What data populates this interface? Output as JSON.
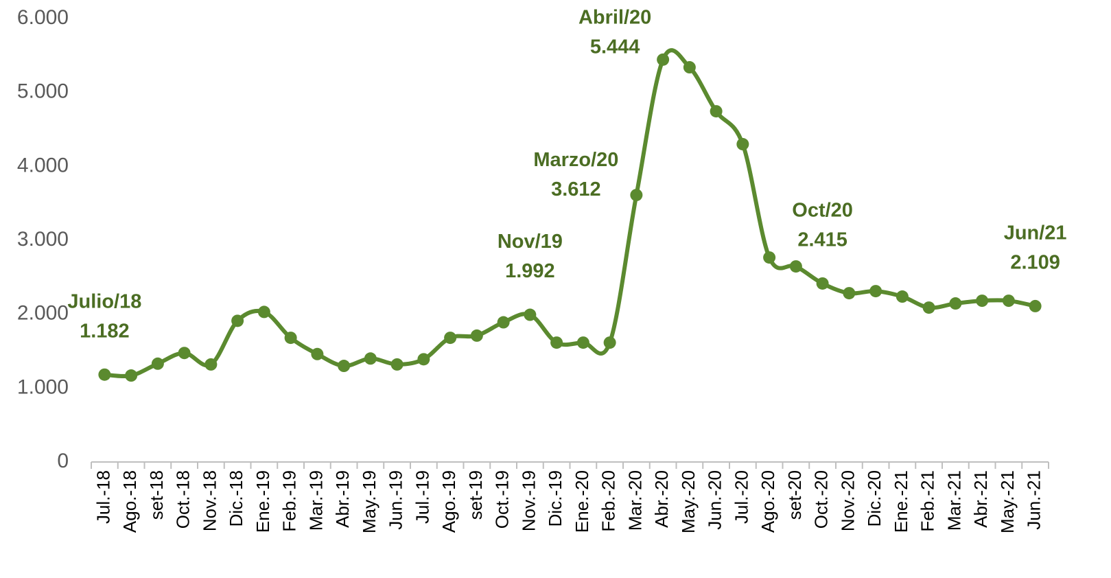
{
  "chart_data": {
    "type": "line",
    "categories": [
      "Jul.-18",
      "Ago.-18",
      "set-18",
      "Oct.-18",
      "Nov.-18",
      "Dic.-18",
      "Ene.-19",
      "Feb.-19",
      "Mar.-19",
      "Abr.-19",
      "May.-19",
      "Jun.-19",
      "Jul.-19",
      "Ago.-19",
      "set-19",
      "Oct.-19",
      "Nov.-19",
      "Dic.-19",
      "Ene.-20",
      "Feb.-20",
      "Mar.-20",
      "Abr.-20",
      "May.-20",
      "Jun.-20",
      "Jul.-20",
      "Ago.-20",
      "set-20",
      "Oct.-20",
      "Nov.-20",
      "Dic.-20",
      "Ene.-21",
      "Feb.-21",
      "Mar.-21",
      "Abr.-21",
      "May.-21",
      "Jun.-21"
    ],
    "values": [
      1182,
      1170,
      1330,
      1475,
      1320,
      1910,
      2030,
      1680,
      1460,
      1300,
      1400,
      1320,
      1390,
      1680,
      1710,
      1890,
      1992,
      1615,
      1615,
      1615,
      3612,
      5444,
      5340,
      4745,
      4300,
      2767,
      2646,
      2415,
      2284,
      2312,
      2238,
      2089,
      2145,
      2182,
      2182,
      2109
    ],
    "point_labels": [
      "Julio/18",
      null,
      null,
      null,
      null,
      null,
      null,
      null,
      null,
      null,
      null,
      null,
      null,
      null,
      null,
      null,
      "Nov/19",
      null,
      null,
      null,
      "Marzo/20",
      "Abril/20",
      null,
      null,
      null,
      null,
      null,
      "Oct/20",
      null,
      null,
      null,
      null,
      null,
      null,
      null,
      "Jun/21"
    ],
    "value_labels": [
      "1.182",
      null,
      null,
      null,
      null,
      null,
      null,
      null,
      null,
      null,
      null,
      null,
      null,
      null,
      null,
      null,
      "1.992",
      null,
      null,
      null,
      "3.612",
      "5.444",
      null,
      null,
      null,
      null,
      null,
      "2.415",
      null,
      null,
      null,
      null,
      null,
      null,
      null,
      "2.109"
    ],
    "color": "#5b8a2f",
    "ylim": [
      0,
      6000
    ],
    "yticks": [
      0,
      {
        "value": 1000,
        "label": "1.000"
      },
      {
        "value": 2000,
        "label": "2.000"
      },
      {
        "value": 3000,
        "label": "3.000"
      },
      {
        "value": 4000,
        "label": "4.000"
      },
      {
        "value": 5000,
        "label": "5.000"
      },
      {
        "value": 6000,
        "label": "6.000"
      }
    ],
    "grid": false
  }
}
